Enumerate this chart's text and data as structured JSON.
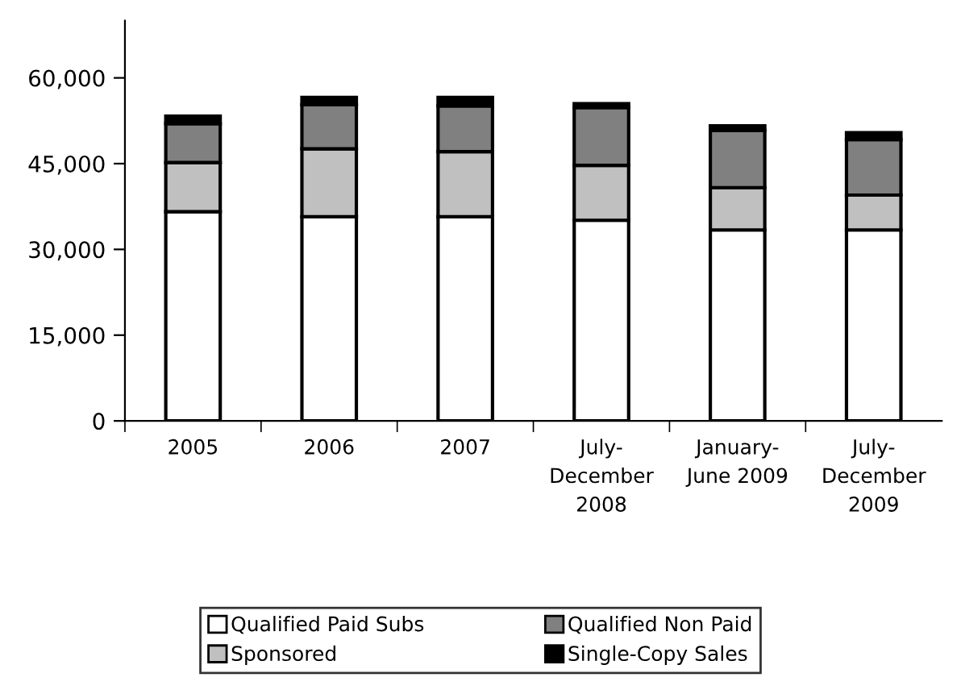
{
  "chart_data": {
    "type": "bar",
    "stacked": true,
    "categories": [
      "2005",
      "2006",
      "2007",
      "July-\nDecember\n2008",
      "January-\nJune 2009",
      "July-\nDecember\n2009"
    ],
    "series": [
      {
        "name": "Qualified Paid Subs",
        "color": "#ffffff",
        "values": [
          36600,
          35700,
          35700,
          35100,
          33400,
          33400
        ]
      },
      {
        "name": "Sponsored",
        "color": "#c0c0c0",
        "values": [
          8600,
          11900,
          11400,
          9600,
          7400,
          6100
        ]
      },
      {
        "name": "Qualified Non Paid",
        "color": "#808080",
        "values": [
          6800,
          7700,
          8000,
          10100,
          10000,
          9700
        ]
      },
      {
        "name": "Single-Copy Sales",
        "color": "#000000",
        "values": [
          1300,
          1300,
          1500,
          700,
          800,
          1200
        ]
      }
    ],
    "ylim": [
      0,
      70000
    ],
    "yticks": [
      {
        "value": 0,
        "label": "0"
      },
      {
        "value": 15000,
        "label": "15,000"
      },
      {
        "value": 30000,
        "label": "30,000"
      },
      {
        "value": 45000,
        "label": "45,000"
      },
      {
        "value": 60000,
        "label": "60,000"
      }
    ],
    "legend": "bottom",
    "grid": false
  }
}
